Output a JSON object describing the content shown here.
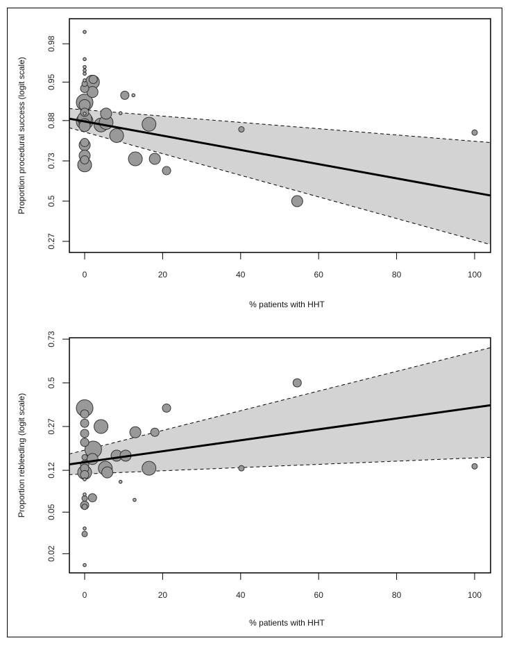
{
  "chart_data": [
    {
      "type": "scatter",
      "subtype": "meta-regression bubble plot",
      "title": "",
      "xlabel": "% patients with HHT",
      "ylabel": "Proportion procedural success (logit scale)",
      "xlim": [
        -4,
        104
      ],
      "x_ticks": [
        0,
        20,
        40,
        60,
        80,
        100
      ],
      "y_scale": "logit",
      "y_ticks": [
        0.27,
        0.5,
        0.73,
        0.88,
        0.95,
        0.98
      ],
      "ylim": [
        0.22,
        0.995
      ],
      "grid": false,
      "legend": "none",
      "colors": {
        "bubble_fill": "#999999",
        "bubble_stroke": "#333333",
        "band_fill": "#d3d3d3",
        "line": "#000000"
      },
      "regression": {
        "x": [
          -4,
          104
        ],
        "fit": [
          0.885,
          0.535
        ],
        "ci_upper": [
          0.908,
          0.81
        ],
        "ci_lower": [
          0.86,
          0.255
        ]
      },
      "points": [
        {
          "x": 0,
          "y": 0.991,
          "size": 1
        },
        {
          "x": 0,
          "y": 0.985,
          "size": 1
        },
        {
          "x": 0,
          "y": 0.971,
          "size": 1
        },
        {
          "x": 0,
          "y": 0.965,
          "size": 1
        },
        {
          "x": 0,
          "y": 0.962,
          "size": 1
        },
        {
          "x": 0,
          "y": 0.959,
          "size": 1
        },
        {
          "x": 0,
          "y": 0.952,
          "size": 1
        },
        {
          "x": 0,
          "y": 0.948,
          "size": 2
        },
        {
          "x": 0,
          "y": 0.942,
          "size": 3
        },
        {
          "x": 2,
          "y": 0.95,
          "size": 5
        },
        {
          "x": 2.2,
          "y": 0.953,
          "size": 3
        },
        {
          "x": 2,
          "y": 0.937,
          "size": 4
        },
        {
          "x": 0,
          "y": 0.92,
          "size": 6
        },
        {
          "x": 0,
          "y": 0.915,
          "size": 4
        },
        {
          "x": 0,
          "y": 0.9,
          "size": 3
        },
        {
          "x": 0,
          "y": 0.897,
          "size": 1
        },
        {
          "x": 0,
          "y": 0.885,
          "size": 5
        },
        {
          "x": 0,
          "y": 0.878,
          "size": 6
        },
        {
          "x": 0,
          "y": 0.87,
          "size": 4
        },
        {
          "x": 0,
          "y": 0.865,
          "size": 4
        },
        {
          "x": 0,
          "y": 0.81,
          "size": 3
        },
        {
          "x": 0,
          "y": 0.8,
          "size": 4
        },
        {
          "x": 0,
          "y": 0.755,
          "size": 4
        },
        {
          "x": 0,
          "y": 0.735,
          "size": 3
        },
        {
          "x": 0,
          "y": 0.71,
          "size": 5
        },
        {
          "x": 4.2,
          "y": 0.868,
          "size": 5
        },
        {
          "x": 5.5,
          "y": 0.875,
          "size": 5
        },
        {
          "x": 5.5,
          "y": 0.897,
          "size": 4
        },
        {
          "x": 8.2,
          "y": 0.835,
          "size": 5
        },
        {
          "x": 9.2,
          "y": 0.898,
          "size": 1
        },
        {
          "x": 10.3,
          "y": 0.932,
          "size": 3
        },
        {
          "x": 12.5,
          "y": 0.932,
          "size": 1
        },
        {
          "x": 13,
          "y": 0.74,
          "size": 5
        },
        {
          "x": 16.5,
          "y": 0.87,
          "size": 5
        },
        {
          "x": 18,
          "y": 0.74,
          "size": 4
        },
        {
          "x": 21,
          "y": 0.68,
          "size": 3
        },
        {
          "x": 40.2,
          "y": 0.855,
          "size": 2
        },
        {
          "x": 54.5,
          "y": 0.5,
          "size": 4
        },
        {
          "x": 100,
          "y": 0.845,
          "size": 2
        }
      ]
    },
    {
      "type": "scatter",
      "subtype": "meta-regression bubble plot",
      "title": "",
      "xlabel": "% patients with HHT",
      "ylabel": "Proportion rebleeding (logit scale)",
      "xlim": [
        -4,
        104
      ],
      "x_ticks": [
        0,
        20,
        40,
        60,
        80,
        100
      ],
      "y_scale": "logit",
      "y_ticks": [
        0.02,
        0.05,
        0.12,
        0.27,
        0.5,
        0.73
      ],
      "ylim": [
        0.0135,
        0.74
      ],
      "grid": false,
      "legend": "none",
      "colors": {
        "bubble_fill": "#999999",
        "bubble_stroke": "#333333",
        "band_fill": "#d3d3d3",
        "line": "#000000"
      },
      "regression": {
        "x": [
          -4,
          104
        ],
        "fit": [
          0.135,
          0.375
        ],
        "ci_upper": [
          0.165,
          0.69
        ],
        "ci_lower": [
          0.11,
          0.155
        ]
      },
      "points": [
        {
          "x": 0,
          "y": 0.36,
          "size": 6
        },
        {
          "x": 0,
          "y": 0.33,
          "size": 3
        },
        {
          "x": 0,
          "y": 0.285,
          "size": 3
        },
        {
          "x": 0,
          "y": 0.24,
          "size": 3
        },
        {
          "x": 0,
          "y": 0.205,
          "size": 3
        },
        {
          "x": 0,
          "y": 0.155,
          "size": 2
        },
        {
          "x": 0,
          "y": 0.135,
          "size": 3
        },
        {
          "x": 0,
          "y": 0.125,
          "size": 3
        },
        {
          "x": 0,
          "y": 0.115,
          "size": 5
        },
        {
          "x": 0,
          "y": 0.11,
          "size": 3
        },
        {
          "x": 0,
          "y": 0.1,
          "size": 1
        },
        {
          "x": 0,
          "y": 0.073,
          "size": 1
        },
        {
          "x": 0,
          "y": 0.067,
          "size": 2
        },
        {
          "x": 0,
          "y": 0.058,
          "size": 3
        },
        {
          "x": 0,
          "y": 0.056,
          "size": 2
        },
        {
          "x": 0,
          "y": 0.035,
          "size": 1
        },
        {
          "x": 0,
          "y": 0.031,
          "size": 2
        },
        {
          "x": 0,
          "y": 0.0155,
          "size": 1
        },
        {
          "x": 2.2,
          "y": 0.18,
          "size": 6
        },
        {
          "x": 2,
          "y": 0.15,
          "size": 4
        },
        {
          "x": 2,
          "y": 0.068,
          "size": 3
        },
        {
          "x": 4.2,
          "y": 0.27,
          "size": 5
        },
        {
          "x": 5.3,
          "y": 0.125,
          "size": 5
        },
        {
          "x": 5.8,
          "y": 0.115,
          "size": 4
        },
        {
          "x": 8.2,
          "y": 0.16,
          "size": 4
        },
        {
          "x": 9.2,
          "y": 0.095,
          "size": 1
        },
        {
          "x": 10.5,
          "y": 0.16,
          "size": 4
        },
        {
          "x": 12.8,
          "y": 0.065,
          "size": 1
        },
        {
          "x": 13,
          "y": 0.245,
          "size": 4
        },
        {
          "x": 16.5,
          "y": 0.125,
          "size": 5
        },
        {
          "x": 18,
          "y": 0.245,
          "size": 3
        },
        {
          "x": 21,
          "y": 0.36,
          "size": 3
        },
        {
          "x": 40.2,
          "y": 0.125,
          "size": 2
        },
        {
          "x": 54.5,
          "y": 0.5,
          "size": 3
        },
        {
          "x": 100,
          "y": 0.13,
          "size": 2
        }
      ]
    }
  ]
}
